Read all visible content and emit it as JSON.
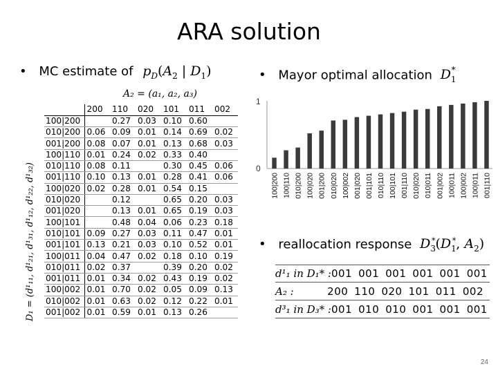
{
  "slide": {
    "title": "ARA solution",
    "page_number": "24"
  },
  "bullets": {
    "mc": {
      "text": "MC estimate of",
      "formula": "p_D(A_2 | D_1)"
    },
    "mayor": {
      "text": "Mayor optimal allocation",
      "formula": "D_1^*"
    },
    "realloc": {
      "text": "reallocation response",
      "formula": "D_3^*(D_1^*, A_2)"
    }
  },
  "prob_table": {
    "a2_header": "A₂ = (a₁, a₂, a₃)",
    "row_axis_label": "D₁ = (d¹₁₁, d¹₂₁, d¹₃₁, d¹₁₂, d¹₂₂, d¹₃₂)",
    "columns": [
      "200",
      "110",
      "020",
      "101",
      "011",
      "002"
    ],
    "rows": [
      {
        "label": "100|200",
        "cells": [
          "",
          "0.27",
          "0.03",
          "0.10",
          "0.60",
          ""
        ]
      },
      {
        "label": "010|200",
        "cells": [
          "0.06",
          "0.09",
          "0.01",
          "0.14",
          "0.69",
          "0.02"
        ]
      },
      {
        "label": "001|200",
        "cells": [
          "0.08",
          "0.07",
          "0.01",
          "0.13",
          "0.68",
          "0.03"
        ]
      },
      {
        "label": "100|110",
        "cells": [
          "0.01",
          "0.24",
          "0.02",
          "0.33",
          "0.40",
          ""
        ]
      },
      {
        "label": "010|110",
        "cells": [
          "0.08",
          "0.11",
          "",
          "0.30",
          "0.45",
          "0.06"
        ]
      },
      {
        "label": "001|110",
        "cells": [
          "0.10",
          "0.13",
          "0.01",
          "0.28",
          "0.41",
          "0.06"
        ]
      },
      {
        "label": "100|020",
        "cells": [
          "0.02",
          "0.28",
          "0.01",
          "0.54",
          "0.15",
          ""
        ]
      },
      {
        "label": "010|020",
        "cells": [
          "",
          "0.12",
          "",
          "0.65",
          "0.20",
          "0.03"
        ]
      },
      {
        "label": "001|020",
        "cells": [
          "",
          "0.13",
          "0.01",
          "0.65",
          "0.19",
          "0.03"
        ]
      },
      {
        "label": "100|101",
        "cells": [
          "",
          "0.48",
          "0.04",
          "0.06",
          "0.23",
          "0.18"
        ]
      },
      {
        "label": "010|101",
        "cells": [
          "0.09",
          "0.27",
          "0.03",
          "0.11",
          "0.47",
          "0.01"
        ]
      },
      {
        "label": "001|101",
        "cells": [
          "0.13",
          "0.21",
          "0.03",
          "0.10",
          "0.52",
          "0.01"
        ]
      },
      {
        "label": "100|011",
        "cells": [
          "0.04",
          "0.47",
          "0.02",
          "0.18",
          "0.10",
          "0.19"
        ]
      },
      {
        "label": "010|011",
        "cells": [
          "0.02",
          "0.37",
          "",
          "0.39",
          "0.20",
          "0.02"
        ]
      },
      {
        "label": "001|011",
        "cells": [
          "0.01",
          "0.34",
          "0.02",
          "0.43",
          "0.19",
          "0.02"
        ]
      },
      {
        "label": "100|002",
        "cells": [
          "0.01",
          "0.70",
          "0.02",
          "0.05",
          "0.09",
          "0.13"
        ]
      },
      {
        "label": "010|002",
        "cells": [
          "0.01",
          "0.63",
          "0.02",
          "0.12",
          "0.22",
          "0.01"
        ]
      },
      {
        "label": "001|002",
        "cells": [
          "0.01",
          "0.59",
          "0.01",
          "0.13",
          "0.26",
          ""
        ]
      }
    ]
  },
  "chart_data": {
    "type": "bar",
    "title": "",
    "xlabel": "",
    "ylabel": "",
    "ylim": [
      0,
      1
    ],
    "yticks": [
      "0",
      "1"
    ],
    "categories": [
      "100|200",
      "100|110",
      "010|200",
      "100|020",
      "001|200",
      "010|020",
      "100|002",
      "001|020",
      "001|101",
      "010|110",
      "100|101",
      "001|110",
      "010|020",
      "010|011",
      "001|002",
      "100|011",
      "100|002",
      "100|011",
      "001|110"
    ],
    "values": [
      0.16,
      0.27,
      0.31,
      0.52,
      0.56,
      0.71,
      0.72,
      0.76,
      0.78,
      0.8,
      0.82,
      0.84,
      0.87,
      0.88,
      0.92,
      0.94,
      0.96,
      0.98,
      1.0
    ],
    "bar_color": "#3a3a3a",
    "grid": false
  },
  "realloc_table": {
    "rows": [
      {
        "label": "d¹₁ in D₁* :",
        "values": [
          "001",
          "001",
          "001",
          "001",
          "001",
          "001"
        ]
      },
      {
        "label": "A₂ :",
        "values": [
          "200",
          "110",
          "020",
          "101",
          "011",
          "002"
        ]
      },
      {
        "label": "d³₁ in D₃* :",
        "values": [
          "001",
          "010",
          "010",
          "001",
          "001",
          "001"
        ]
      }
    ]
  }
}
